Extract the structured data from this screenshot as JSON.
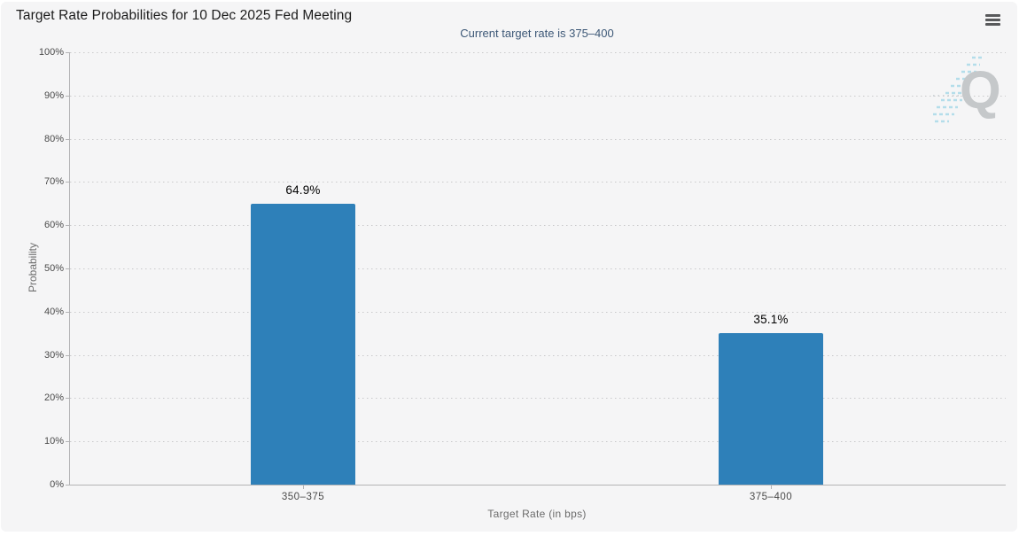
{
  "header": {
    "menu_icon": "hamburger-icon"
  },
  "watermark": {
    "letter": "Q"
  },
  "chart_data": {
    "type": "bar",
    "title": "Target Rate Probabilities for 10 Dec 2025 Fed Meeting",
    "subtitle": "Current target rate is 375–400",
    "categories": [
      "350–375",
      "375–400"
    ],
    "series": [
      {
        "name": "Probability",
        "values": [
          64.9,
          35.1
        ]
      }
    ],
    "value_labels": [
      "64.9%",
      "35.1%"
    ],
    "xlabel": "Target Rate (in bps)",
    "ylabel": "Probability",
    "ylim": [
      0,
      100
    ],
    "ytick_step": 10,
    "ytick_labels": [
      "0%",
      "10%",
      "20%",
      "30%",
      "40%",
      "50%",
      "60%",
      "70%",
      "80%",
      "90%",
      "100%"
    ],
    "grid": "horizontal-dotted",
    "legend": "none",
    "colors": {
      "bar": "#2e80b9",
      "subtitle_text": "#3d5877",
      "axis": "#b3b3b5",
      "grid": "#c9c9cb",
      "card_background": "#f5f5f6"
    }
  }
}
